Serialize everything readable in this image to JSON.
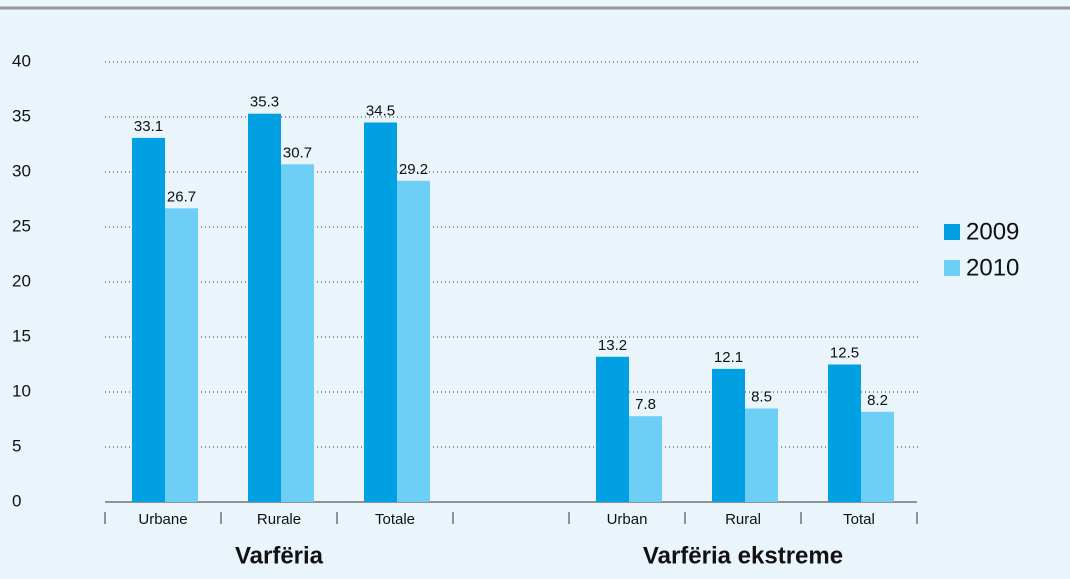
{
  "chart_data": {
    "type": "bar",
    "categories": [
      "Urbane",
      "Rurale",
      "Totale",
      null,
      "Urban",
      "Rural",
      "Total"
    ],
    "groups": [
      "Varfëria",
      "Varfëria ekstreme"
    ],
    "series": [
      {
        "name": "2009",
        "color": "#00a0e3",
        "values": [
          33.1,
          35.3,
          34.5,
          null,
          13.2,
          12.1,
          12.5
        ]
      },
      {
        "name": "2010",
        "color": "#6dcff6",
        "values": [
          26.7,
          30.7,
          29.2,
          null,
          7.8,
          8.5,
          8.2
        ]
      }
    ],
    "ylim": [
      0,
      40
    ],
    "yticks": [
      0,
      5,
      10,
      15,
      20,
      25,
      30,
      35,
      40
    ],
    "grid": true,
    "legend": "right"
  }
}
